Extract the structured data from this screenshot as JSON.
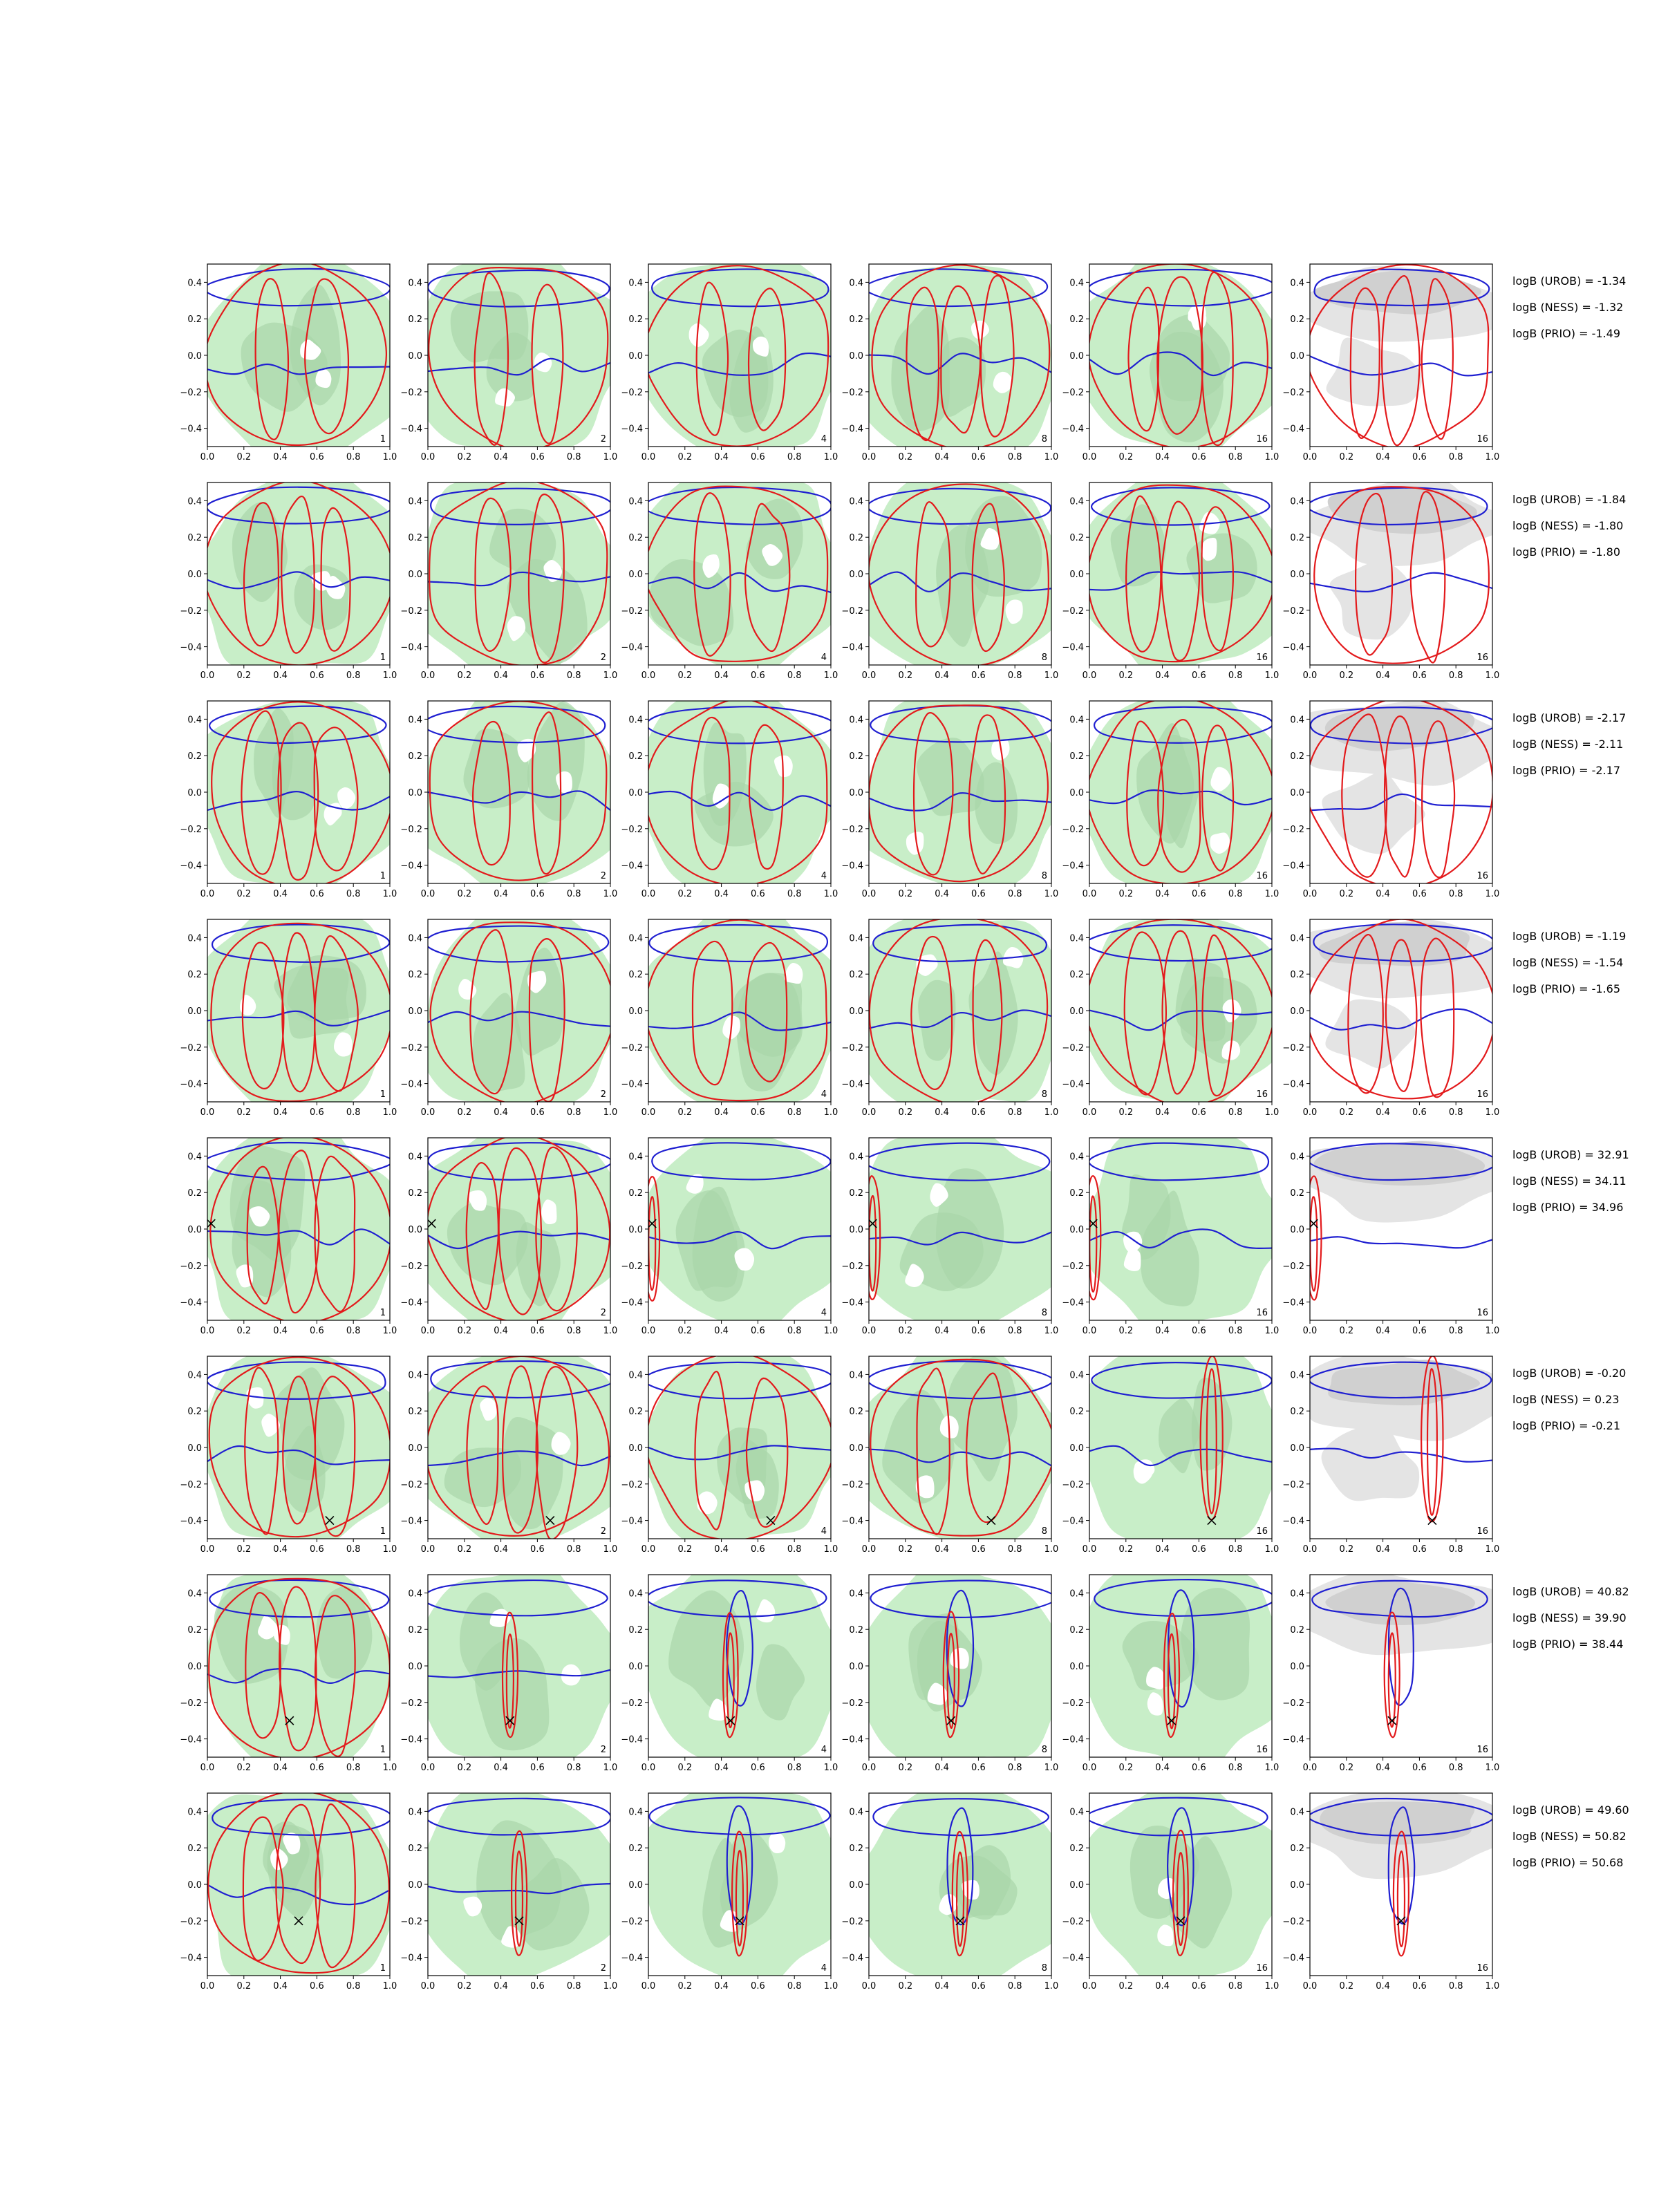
{
  "chart_data": {
    "type": "contour-grid",
    "x_ticks": [
      "0.0",
      "0.2",
      "0.4",
      "0.6",
      "0.8",
      "1.0"
    ],
    "y_ticks": [
      "0.4",
      "0.2",
      "0.0",
      "−0.2",
      "−0.4"
    ],
    "xlim": [
      0,
      1
    ],
    "ylim": [
      -0.5,
      0.5
    ],
    "panel_labels": [
      "1",
      "2",
      "4",
      "8",
      "16",
      "16"
    ],
    "colors": {
      "green_fill": "#c8eec8",
      "green_dark": "#a9d6a9",
      "gray_fill": "#e4e4e4",
      "gray_dark": "#d0d0d0",
      "red_contour": "#e31a1c",
      "blue_contour": "#1f1fd1",
      "marker": "#000000"
    },
    "rows": [
      {
        "logB": [
          "logB (UROB) = -1.34",
          "logB (NESS) = -1.32",
          "logB (PRIO) = -1.49"
        ],
        "marker": null,
        "mode": "diffuse"
      },
      {
        "logB": [
          "logB (UROB) = -1.84",
          "logB (NESS) = -1.80",
          "logB (PRIO) = -1.80"
        ],
        "marker": null,
        "mode": "diffuse"
      },
      {
        "logB": [
          "logB (UROB) = -2.17",
          "logB (NESS) = -2.11",
          "logB (PRIO) = -2.17"
        ],
        "marker": null,
        "mode": "diffuse"
      },
      {
        "logB": [
          "logB (UROB) = -1.19",
          "logB (NESS) = -1.54",
          "logB (PRIO) = -1.65"
        ],
        "marker": null,
        "mode": "diffuse"
      },
      {
        "logB": [
          "logB (UROB) = 32.91",
          "logB (NESS) = 34.11",
          "logB (PRIO) = 34.96"
        ],
        "marker": [
          0.02,
          0.03
        ],
        "mode": "edge"
      },
      {
        "logB": [
          "logB (UROB) = -0.20",
          "logB (NESS) = 0.23",
          "logB (PRIO) = -0.21"
        ],
        "marker": [
          0.67,
          -0.4
        ],
        "mode": "weak"
      },
      {
        "logB": [
          "logB (UROB) = 40.82",
          "logB (NESS) = 39.90",
          "logB (PRIO) = 38.44"
        ],
        "marker": [
          0.45,
          -0.3
        ],
        "mode": "strong"
      },
      {
        "logB": [
          "logB (UROB) = 49.60",
          "logB (NESS) = 50.82",
          "logB (PRIO) = 50.68"
        ],
        "marker": [
          0.5,
          -0.2
        ],
        "mode": "strong"
      }
    ]
  }
}
